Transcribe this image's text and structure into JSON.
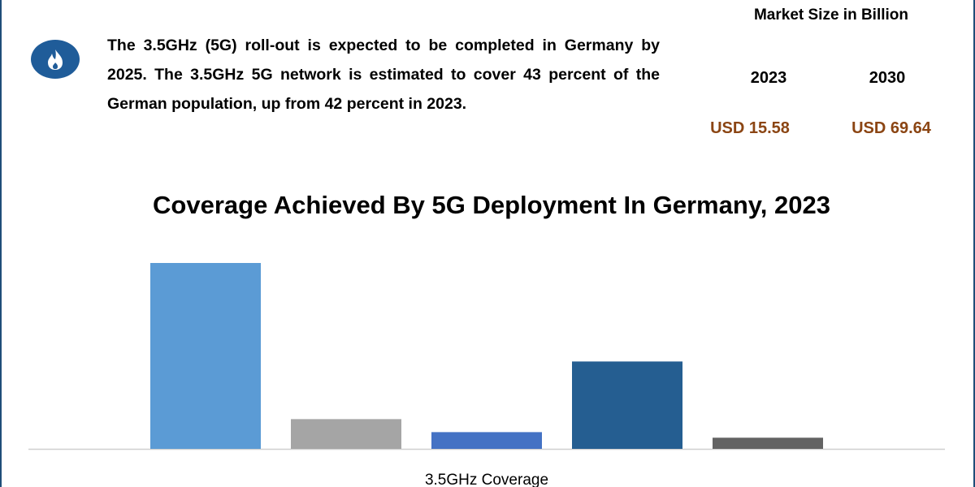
{
  "description": "The 3.5GHz (5G) roll-out is expected to be completed in Germany by 2025. The 3.5GHz 5G network is estimated to cover 43 percent of the German population, up from 42 percent in 2023.",
  "market_size": {
    "title": "Market Size in Billion",
    "years": [
      "2023",
      "2030"
    ],
    "values": [
      "USD 15.58",
      "USD 69.64"
    ]
  },
  "chart_data": {
    "type": "bar",
    "title": "Coverage Achieved By 5G Deployment In Germany, 2023",
    "categories": [
      "3.5GHz Coverage"
    ],
    "series": [
      {
        "color": "#5b9bd5",
        "values": [
          100
        ]
      },
      {
        "color": "#a5a5a5",
        "values": [
          16
        ]
      },
      {
        "color": "#4472c4",
        "values": [
          9
        ]
      },
      {
        "color": "#255e91",
        "values": [
          47
        ]
      },
      {
        "color": "#636363",
        "values": [
          6
        ]
      }
    ]
  }
}
